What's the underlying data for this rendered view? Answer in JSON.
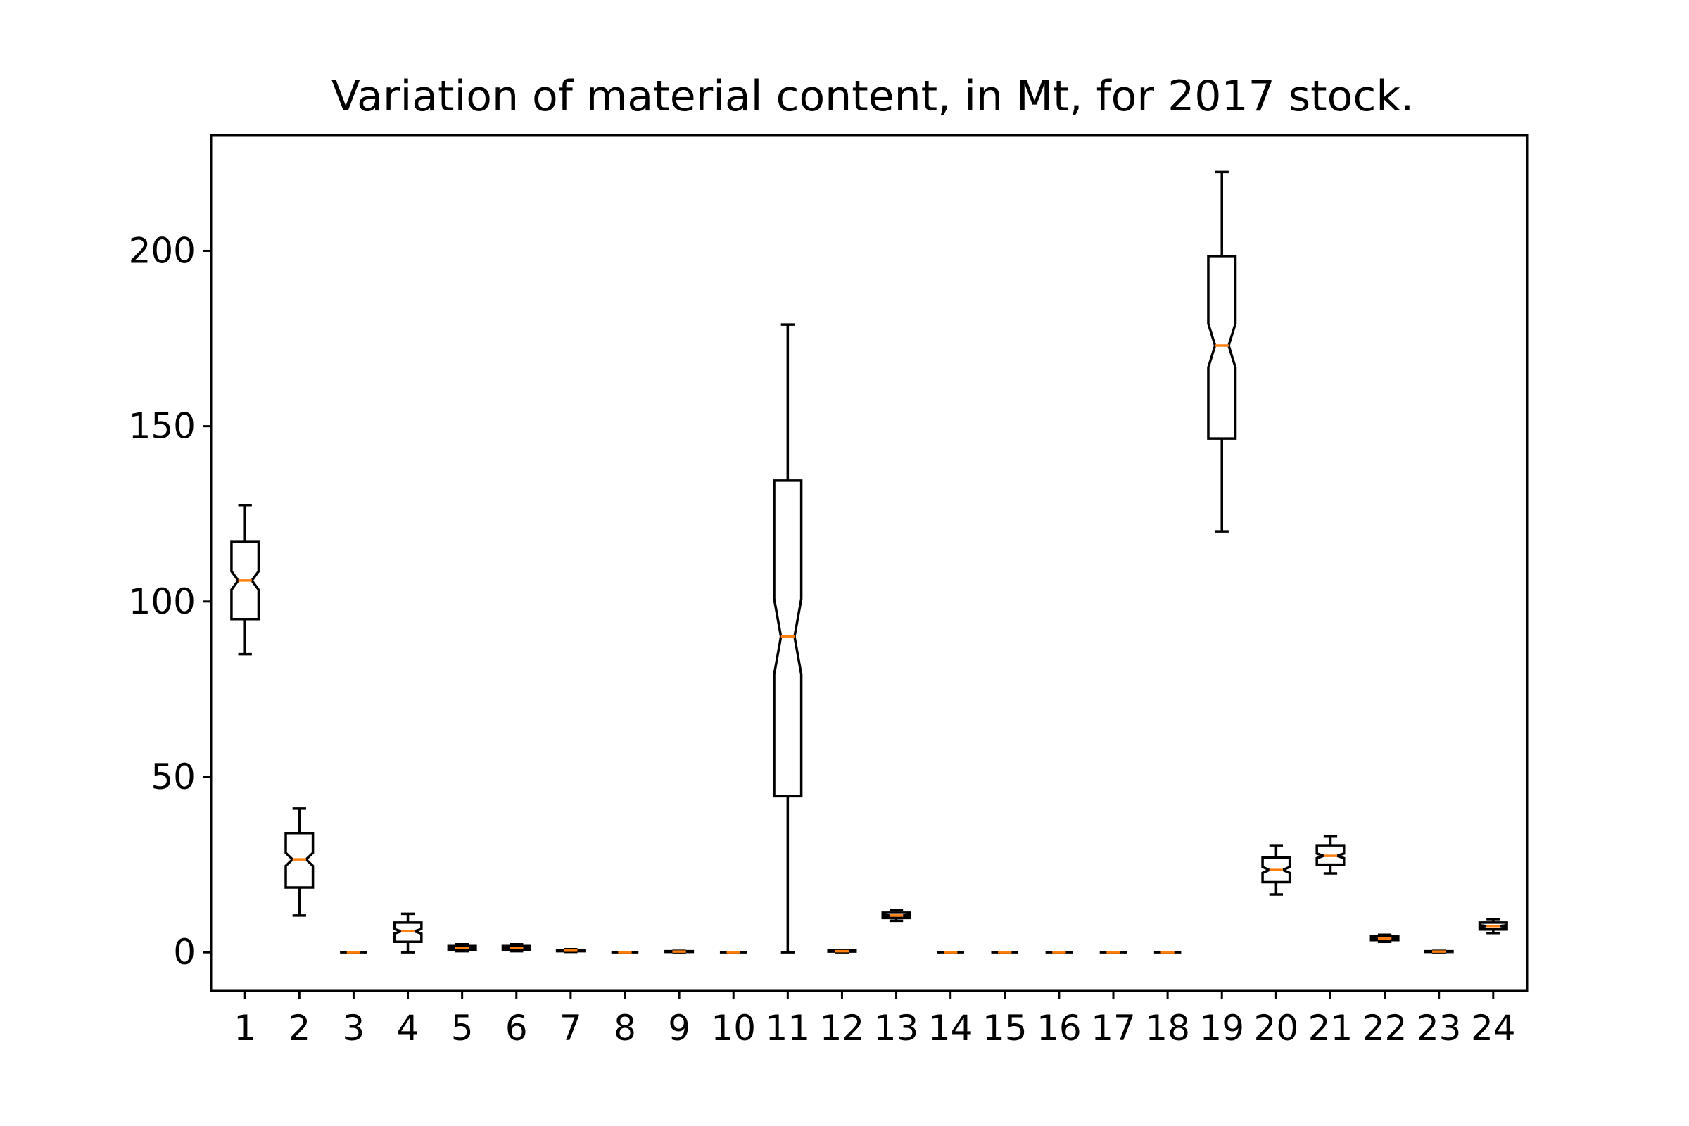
{
  "chart_data": {
    "type": "boxplot",
    "title": "Variation of material content, in Mt, for 2017 stock.",
    "xlabel": "",
    "ylabel": "",
    "categories": [
      "1",
      "2",
      "3",
      "4",
      "5",
      "6",
      "7",
      "8",
      "9",
      "10",
      "11",
      "12",
      "13",
      "14",
      "15",
      "16",
      "17",
      "18",
      "19",
      "20",
      "21",
      "22",
      "23",
      "24"
    ],
    "ylim": [
      -11,
      233
    ],
    "yticks": [
      0,
      50,
      100,
      150,
      200
    ],
    "notched": true,
    "grid": false,
    "colors": {
      "box": "#000000",
      "median": "#ff7f0e"
    },
    "boxes": [
      {
        "whislo": 85,
        "q1": 95,
        "med": 106,
        "q3": 117,
        "whishi": 127.5
      },
      {
        "whislo": 10.5,
        "q1": 18.5,
        "med": 26.5,
        "q3": 34,
        "whishi": 41
      },
      {
        "whislo": 0,
        "q1": 0,
        "med": 0,
        "q3": 0,
        "whishi": 0
      },
      {
        "whislo": 0,
        "q1": 3,
        "med": 6,
        "q3": 8.5,
        "whishi": 11
      },
      {
        "whislo": 0.3,
        "q1": 0.8,
        "med": 1.3,
        "q3": 1.8,
        "whishi": 2.3
      },
      {
        "whislo": 0.3,
        "q1": 0.8,
        "med": 1.3,
        "q3": 1.8,
        "whishi": 2.3
      },
      {
        "whislo": 0.1,
        "q1": 0.3,
        "med": 0.5,
        "q3": 0.7,
        "whishi": 0.9
      },
      {
        "whislo": 0,
        "q1": 0,
        "med": 0,
        "q3": 0,
        "whishi": 0
      },
      {
        "whislo": 0,
        "q1": 0.1,
        "med": 0.2,
        "q3": 0.3,
        "whishi": 0.4
      },
      {
        "whislo": 0,
        "q1": 0,
        "med": 0,
        "q3": 0,
        "whishi": 0
      },
      {
        "whislo": 0,
        "q1": 44.5,
        "med": 90,
        "q3": 134.5,
        "whishi": 179
      },
      {
        "whislo": 0,
        "q1": 0.2,
        "med": 0.3,
        "q3": 0.5,
        "whishi": 0.7
      },
      {
        "whislo": 9,
        "q1": 9.8,
        "med": 10.5,
        "q3": 11.3,
        "whishi": 12
      },
      {
        "whislo": 0,
        "q1": 0,
        "med": 0,
        "q3": 0,
        "whishi": 0
      },
      {
        "whislo": 0,
        "q1": 0,
        "med": 0,
        "q3": 0,
        "whishi": 0
      },
      {
        "whislo": 0,
        "q1": 0,
        "med": 0,
        "q3": 0,
        "whishi": 0
      },
      {
        "whislo": 0,
        "q1": 0,
        "med": 0,
        "q3": 0,
        "whishi": 0
      },
      {
        "whislo": 0,
        "q1": 0,
        "med": 0,
        "q3": 0,
        "whishi": 0
      },
      {
        "whislo": 120,
        "q1": 146.5,
        "med": 173,
        "q3": 198.5,
        "whishi": 222.5
      },
      {
        "whislo": 16.5,
        "q1": 20,
        "med": 23.5,
        "q3": 27,
        "whishi": 30.5
      },
      {
        "whislo": 22.5,
        "q1": 25,
        "med": 27.5,
        "q3": 30.5,
        "whishi": 33
      },
      {
        "whislo": 3,
        "q1": 3.5,
        "med": 4,
        "q3": 4.6,
        "whishi": 5
      },
      {
        "whislo": 0,
        "q1": 0.1,
        "med": 0.2,
        "q3": 0.3,
        "whishi": 0.4
      },
      {
        "whislo": 5.5,
        "q1": 6.5,
        "med": 7.5,
        "q3": 8.5,
        "whishi": 9.5
      }
    ]
  }
}
